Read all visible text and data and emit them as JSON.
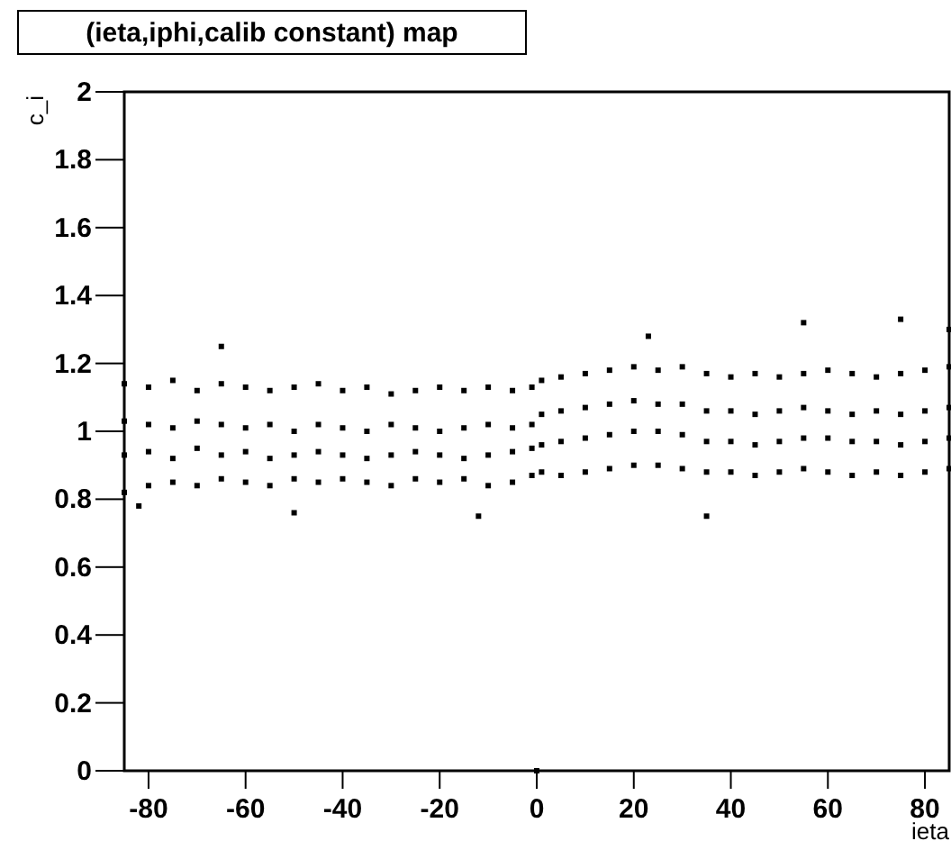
{
  "chart_data": {
    "type": "scatter",
    "title": "(ieta,iphi,calib constant) map",
    "xlabel": "ieta",
    "ylabel": "c_i",
    "xlim": [
      -85,
      85
    ],
    "ylim": [
      0,
      2
    ],
    "xticks": [
      -80,
      -60,
      -40,
      -20,
      0,
      20,
      40,
      60,
      80
    ],
    "yticks": [
      0,
      0.2,
      0.4,
      0.6,
      0.8,
      1,
      1.2,
      1.4,
      1.6,
      1.8,
      2
    ],
    "marker": "square",
    "series": [
      {
        "color": "#000000",
        "x": [
          -85,
          -85,
          -85,
          -85,
          -80,
          -80,
          -80,
          -80,
          -75,
          -75,
          -75,
          -75,
          -70,
          -70,
          -70,
          -70,
          -65,
          -65,
          -65,
          -65,
          -60,
          -60,
          -60,
          -60,
          -55,
          -55,
          -55,
          -55,
          -50,
          -50,
          -50,
          -50,
          -45,
          -45,
          -45,
          -45,
          -40,
          -40,
          -40,
          -40,
          -35,
          -35,
          -35,
          -35,
          -30,
          -30,
          -30,
          -30,
          -25,
          -25,
          -25,
          -25,
          -20,
          -20,
          -20,
          -20,
          -15,
          -15,
          -15,
          -15,
          -10,
          -10,
          -10,
          -10,
          -5,
          -5,
          -5,
          -5,
          -1,
          -1,
          -1,
          -1,
          1,
          1,
          1,
          1,
          5,
          5,
          5,
          5,
          10,
          10,
          10,
          10,
          15,
          15,
          15,
          15,
          20,
          20,
          20,
          20,
          25,
          25,
          25,
          25,
          30,
          30,
          30,
          30,
          35,
          35,
          35,
          35,
          40,
          40,
          40,
          40,
          45,
          45,
          45,
          45,
          50,
          50,
          50,
          50,
          55,
          55,
          55,
          55,
          60,
          60,
          60,
          60,
          65,
          65,
          65,
          65,
          70,
          70,
          70,
          70,
          75,
          75,
          75,
          75,
          80,
          80,
          80,
          80,
          85,
          85,
          85,
          85,
          -82,
          -50,
          -12,
          35,
          23,
          55,
          75,
          -65,
          85,
          0
        ],
        "values": [
          0.82,
          0.93,
          1.03,
          1.14,
          0.84,
          0.94,
          1.02,
          1.13,
          0.85,
          0.92,
          1.01,
          1.15,
          0.84,
          0.95,
          1.03,
          1.12,
          0.86,
          0.93,
          1.02,
          1.14,
          0.85,
          0.94,
          1.01,
          1.13,
          0.84,
          0.92,
          1.02,
          1.12,
          0.86,
          0.93,
          1.0,
          1.13,
          0.85,
          0.94,
          1.02,
          1.14,
          0.86,
          0.93,
          1.01,
          1.12,
          0.85,
          0.92,
          1.0,
          1.13,
          0.84,
          0.93,
          1.02,
          1.11,
          0.86,
          0.94,
          1.01,
          1.12,
          0.85,
          0.93,
          1.0,
          1.13,
          0.86,
          0.92,
          1.01,
          1.12,
          0.84,
          0.93,
          1.02,
          1.13,
          0.85,
          0.94,
          1.01,
          1.12,
          0.87,
          0.95,
          1.02,
          1.13,
          0.88,
          0.96,
          1.05,
          1.15,
          0.87,
          0.97,
          1.06,
          1.16,
          0.88,
          0.98,
          1.07,
          1.17,
          0.89,
          0.99,
          1.08,
          1.18,
          0.9,
          1.0,
          1.09,
          1.19,
          0.9,
          1.0,
          1.08,
          1.18,
          0.89,
          0.99,
          1.08,
          1.19,
          0.88,
          0.97,
          1.06,
          1.17,
          0.88,
          0.97,
          1.06,
          1.16,
          0.87,
          0.96,
          1.05,
          1.17,
          0.88,
          0.97,
          1.06,
          1.16,
          0.89,
          0.98,
          1.07,
          1.17,
          0.88,
          0.98,
          1.06,
          1.18,
          0.87,
          0.97,
          1.05,
          1.17,
          0.88,
          0.97,
          1.06,
          1.16,
          0.87,
          0.96,
          1.05,
          1.17,
          0.88,
          0.97,
          1.06,
          1.18,
          0.89,
          0.98,
          1.07,
          1.19,
          0.78,
          0.76,
          0.75,
          0.75,
          1.28,
          1.32,
          1.33,
          1.25,
          1.3,
          0
        ]
      }
    ]
  }
}
